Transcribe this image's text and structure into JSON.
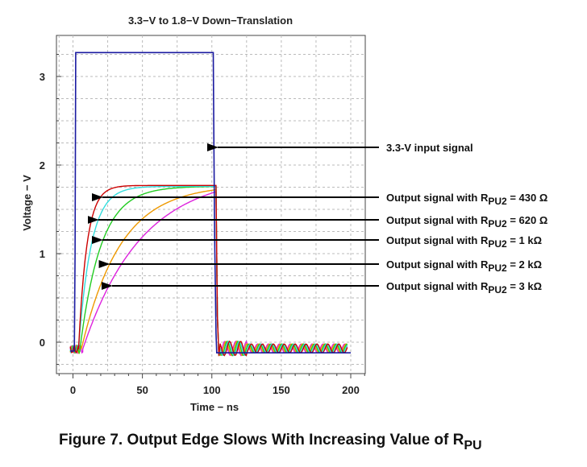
{
  "chart_data": {
    "type": "line",
    "title": "3.3−V to 1.8−V Down−Translation",
    "xlabel": "Time − ns",
    "ylabel": "Voltage − V",
    "xlim": [
      -10,
      210
    ],
    "ylim": [
      -0.4,
      3.6
    ],
    "xticks": [
      {
        "value": 0,
        "label": "0"
      },
      {
        "value": 50,
        "label": "50"
      },
      {
        "value": 100,
        "label": "100"
      },
      {
        "value": 150,
        "label": "150"
      },
      {
        "value": 200,
        "label": "200"
      }
    ],
    "yticks": [
      {
        "value": 0,
        "label": "0"
      },
      {
        "value": 1,
        "label": "1"
      },
      {
        "value": 2,
        "label": "2"
      },
      {
        "value": 3,
        "label": "3"
      }
    ],
    "grid": true,
    "series": [
      {
        "name": "3.3-V input signal",
        "color": "#1a1aa0",
        "x": [
          -2,
          1,
          1.5,
          2,
          2.5,
          101,
          101.5,
          102,
          103,
          103.5,
          200
        ],
        "y": [
          -0.1,
          -0.1,
          1.0,
          3.27,
          3.27,
          3.27,
          2.2,
          1.2,
          0.1,
          -0.12,
          -0.12
        ]
      },
      {
        "name": "Output signal with R",
        "sub": "PU2",
        "value": " = 430 Ω",
        "color": "#cc0000",
        "tau": 6,
        "start": 4,
        "vmax": 1.77,
        "fall": 103,
        "arrow_x": 20,
        "arrow_y": 1.8
      },
      {
        "name": "Output signal with R",
        "sub": "PU2",
        "value": " = 620 Ω",
        "color": "#33dddd",
        "tau": 9,
        "start": 4,
        "vmax": 1.76,
        "fall": 103,
        "arrow_x": 17,
        "arrow_y": 1.5
      },
      {
        "name": "Output signal with R",
        "sub": "PU2",
        "value": " = 1 kΩ",
        "color": "#22cc22",
        "tau": 15,
        "start": 5,
        "vmax": 1.76,
        "fall": 103,
        "arrow_x": 20,
        "arrow_y": 1.25
      },
      {
        "name": "Output signal with R",
        "sub": "PU2",
        "value": " = 2 kΩ",
        "color": "#ee9900",
        "tau": 28,
        "start": 6,
        "vmax": 1.78,
        "fall": 103,
        "arrow_x": 25,
        "arrow_y": 0.93
      },
      {
        "name": "Output signal with R",
        "sub": "PU2",
        "value": " = 3 kΩ",
        "color": "#dd22dd",
        "tau": 42,
        "start": 7,
        "vmax": 1.9,
        "fall": 103,
        "arrow_x": 27,
        "arrow_y": 0.63
      }
    ],
    "input_arrow": {
      "x": 103,
      "y": 2.2
    }
  },
  "caption": {
    "main": "Figure 7.  Output Edge Slows With Increasing Value of R",
    "sub": "PU"
  }
}
